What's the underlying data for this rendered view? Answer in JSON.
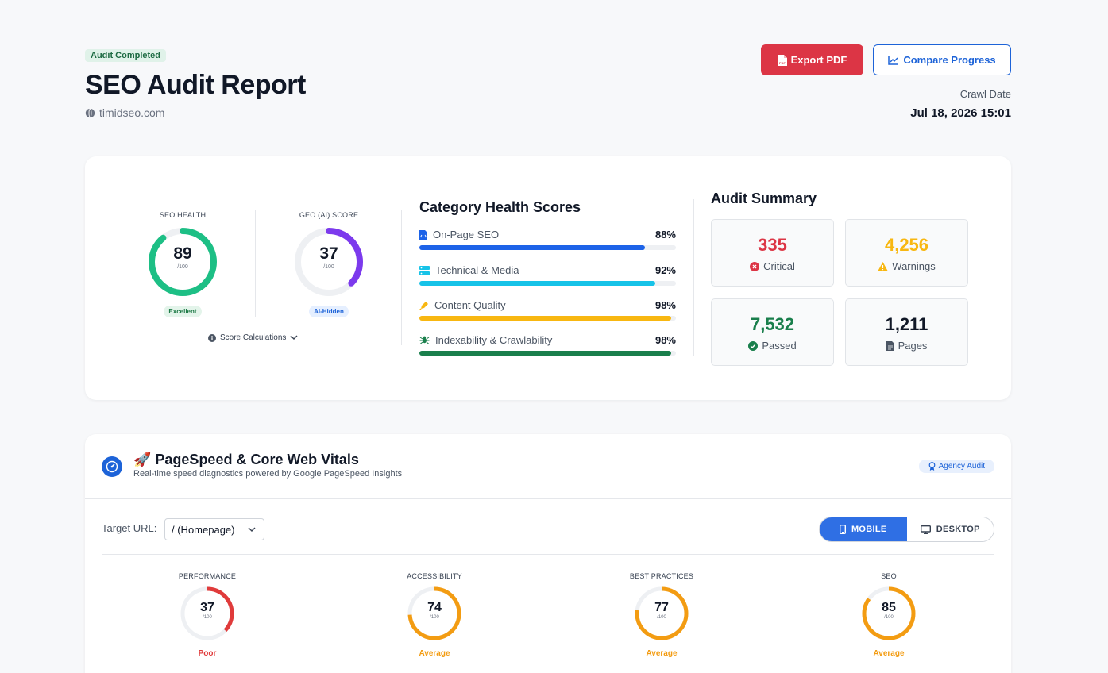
{
  "header": {
    "badge": "Audit Completed",
    "title": "SEO Audit Report",
    "domain": "timidseo.com",
    "export_label": "Export PDF",
    "compare_label": "Compare Progress",
    "crawl_label": "Crawl Date",
    "crawl_date": "Jul 18, 2026 15:01"
  },
  "scores": {
    "seo": {
      "label": "SEO HEALTH",
      "value": "89",
      "denom": "/100",
      "status": "Excellent",
      "color": "#1dbf85",
      "fraction": 0.89
    },
    "geo": {
      "label": "GEO (AI) SCORE",
      "value": "37",
      "denom": "/100",
      "status": "AI-Hidden",
      "color": "#7c3aed",
      "fraction": 0.37
    },
    "calc_label": "Score Calculations"
  },
  "categories": {
    "title": "Category Health Scores",
    "items": [
      {
        "label": "On-Page SEO",
        "pct": "88%",
        "value": 88,
        "color": "#1d63e8",
        "icon": "code-file-icon"
      },
      {
        "label": "Technical & Media",
        "pct": "92%",
        "value": 92,
        "color": "#17c3e8",
        "icon": "server-icon"
      },
      {
        "label": "Content Quality",
        "pct": "98%",
        "value": 98,
        "color": "#f8b711",
        "icon": "pen-icon"
      },
      {
        "label": "Indexability & Crawlability",
        "pct": "98%",
        "value": 98,
        "color": "#1a7f4c",
        "icon": "spider-icon"
      }
    ]
  },
  "summary": {
    "title": "Audit Summary",
    "critical": {
      "value": "335",
      "label": "Critical",
      "color": "#dc3545"
    },
    "warnings": {
      "value": "4,256",
      "label": "Warnings",
      "color": "#f8b711"
    },
    "passed": {
      "value": "7,532",
      "label": "Passed",
      "color": "#1a7f4c"
    },
    "pages": {
      "value": "1,211",
      "label": "Pages",
      "color": "#111827"
    }
  },
  "pagespeed": {
    "title": "🚀 PageSpeed & Core Web Vitals",
    "subtitle": "Real-time speed diagnostics powered by Google PageSpeed Insights",
    "agency_label": "Agency Audit",
    "target_label": "Target URL:",
    "target_value": "/ (Homepage)",
    "mobile_label": "MOBILE",
    "desktop_label": "DESKTOP",
    "metrics": [
      {
        "label": "PERFORMANCE",
        "value": "37",
        "denom": "/100",
        "status": "Poor",
        "color": "#e03b3b",
        "fraction": 0.37
      },
      {
        "label": "ACCESSIBILITY",
        "value": "74",
        "denom": "/100",
        "status": "Average",
        "color": "#f39c12",
        "fraction": 0.74
      },
      {
        "label": "BEST PRACTICES",
        "value": "77",
        "denom": "/100",
        "status": "Average",
        "color": "#f39c12",
        "fraction": 0.77
      },
      {
        "label": "SEO",
        "value": "85",
        "denom": "/100",
        "status": "Average",
        "color": "#f39c12",
        "fraction": 0.85
      }
    ]
  }
}
